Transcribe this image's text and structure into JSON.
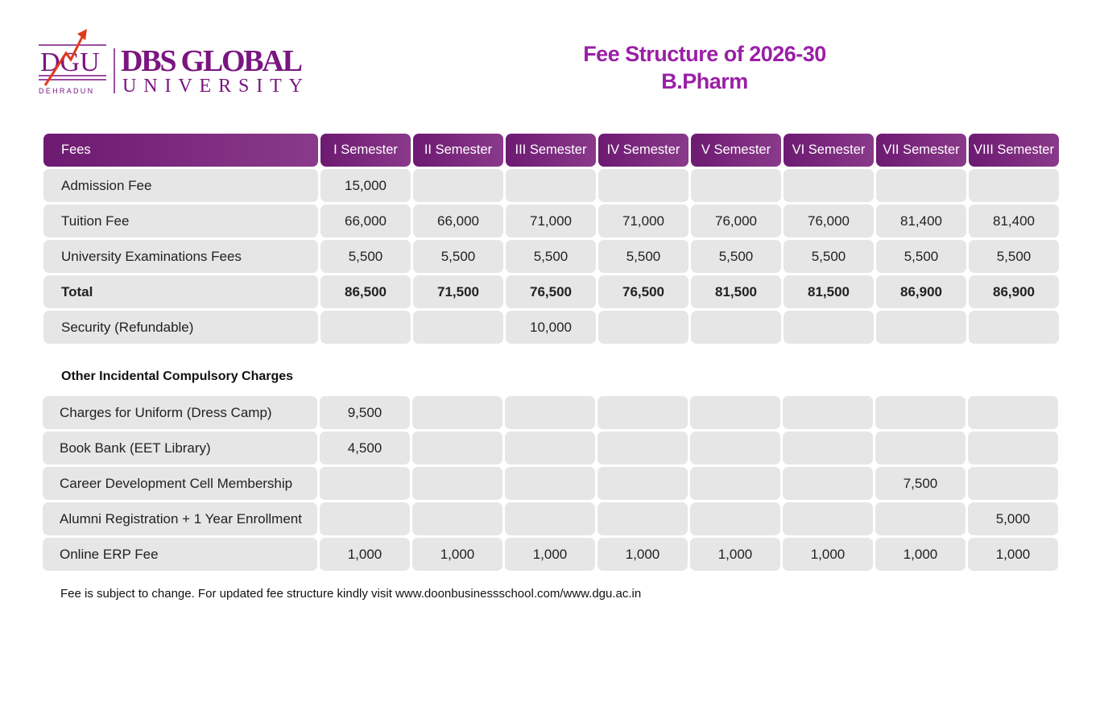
{
  "logo": {
    "mark": "DGU",
    "sub": "DEHRADUN",
    "name": "DBS GLOBAL",
    "name2": "UNIVERSITY"
  },
  "title": {
    "line1": "Fee Structure of 2026-30",
    "line2": "B.Pharm"
  },
  "table": {
    "headers": [
      "Fees",
      "I Semester",
      "II Semester",
      "III Semester",
      "IV Semester",
      "V Semester",
      "VI Semester",
      "VII Semester",
      "VIII Semester"
    ],
    "rows": [
      {
        "label": "Admission Fee",
        "values": [
          "15,000",
          "",
          "",
          "",
          "",
          "",
          "",
          ""
        ]
      },
      {
        "label": "Tuition Fee",
        "values": [
          "66,000",
          "66,000",
          "71,000",
          "71,000",
          "76,000",
          "76,000",
          "81,400",
          "81,400"
        ]
      },
      {
        "label": "University Examinations Fees",
        "values": [
          "5,500",
          "5,500",
          "5,500",
          "5,500",
          "5,500",
          "5,500",
          "5,500",
          "5,500"
        ]
      },
      {
        "label": "Total",
        "bold": true,
        "values": [
          "86,500",
          "71,500",
          "76,500",
          "76,500",
          "81,500",
          "81,500",
          "86,900",
          "86,900"
        ]
      },
      {
        "label": "Security (Refundable)",
        "values": [
          "",
          "",
          "10,000",
          "",
          "",
          "",
          "",
          ""
        ]
      }
    ]
  },
  "section_title": "Other Incidental Compulsory Charges",
  "other": {
    "rows": [
      {
        "label": "Charges for Uniform (Dress Camp)",
        "values": [
          "9,500",
          "",
          "",
          "",
          "",
          "",
          "",
          ""
        ]
      },
      {
        "label": "Book Bank (EET Library)",
        "values": [
          "4,500",
          "",
          "",
          "",
          "",
          "",
          "",
          ""
        ]
      },
      {
        "label": "Career Development Cell Membership",
        "values": [
          "",
          "",
          "",
          "",
          "",
          "",
          "7,500",
          ""
        ]
      },
      {
        "label": "Alumni Registration +  1 Year Enrollment",
        "values": [
          "",
          "",
          "",
          "",
          "",
          "",
          "",
          "5,000"
        ]
      },
      {
        "label": "Online ERP Fee",
        "values": [
          "1,000",
          "1,000",
          "1,000",
          "1,000",
          "1,000",
          "1,000",
          "1,000",
          "1,000"
        ]
      }
    ]
  },
  "note": "Fee is subject to change. For updated fee structure kindly visit www.doonbusinessschool.com/www.dgu.ac.in",
  "colors": {
    "brand": "#7a1580",
    "title": "#9a1fa6",
    "accent": "#e03a1e",
    "cell": "#e6e6e6"
  }
}
